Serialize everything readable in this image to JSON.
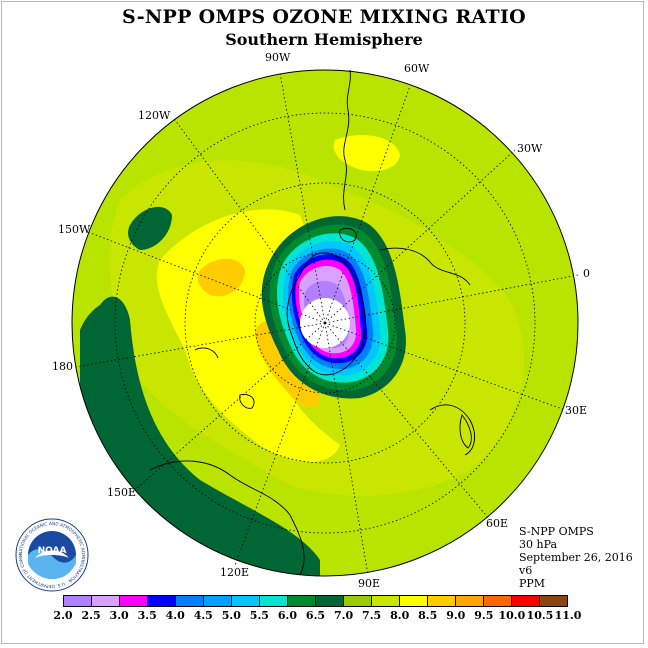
{
  "header": {
    "title": "S-NPP OMPS OZONE MIXING RATIO",
    "subtitle": "Southern Hemisphere"
  },
  "map": {
    "projection": "polar stereographic, south pole centered",
    "longitude_labels": [
      "90W",
      "60W",
      "120W",
      "30W",
      "150W",
      "0",
      "180",
      "30E",
      "150E",
      "60E",
      "120E",
      "90E"
    ],
    "colors": {
      "background_green": "#b9e400",
      "yellow": "#ffff00",
      "orange_light": "#ffcc00",
      "orange": "#ffa500",
      "dark_green": "#006633",
      "mid_green": "#008a2e",
      "cyan": "#00e6d2",
      "light_blue": "#00c8ff",
      "blue": "#0080ff",
      "dark_blue": "#0000ff",
      "magenta": "#ff00ff",
      "lilac": "#d8a0ff",
      "purple": "#b080ff",
      "white": "#ffffff"
    }
  },
  "info": {
    "product": "S-NPP OMPS",
    "level": "30 hPa",
    "date": "September 26, 2016",
    "version": "v6",
    "units": "PPM"
  },
  "logo": {
    "text": "NOAA",
    "ring_text": "NATIONAL OCEANIC AND ATMOSPHERIC ADMINISTRATION · U.S. DEPARTMENT OF COMMERCE"
  },
  "colorbar": {
    "labels": [
      "2.0",
      "2.5",
      "3.0",
      "3.5",
      "4.0",
      "4.5",
      "5.0",
      "5.5",
      "6.0",
      "6.5",
      "7.0",
      "7.5",
      "8.0",
      "8.5",
      "9.0",
      "9.5",
      "10.0",
      "10.5",
      "11.0"
    ],
    "colors": [
      "#b080ff",
      "#d8a0ff",
      "#ff00ff",
      "#0000ff",
      "#0080ff",
      "#00a0ff",
      "#00c8ff",
      "#00e6d2",
      "#008a2e",
      "#006633",
      "#99cc00",
      "#c8e600",
      "#ffff00",
      "#ffcc00",
      "#ffa500",
      "#ff6600",
      "#ff0000",
      "#8b4513"
    ]
  }
}
